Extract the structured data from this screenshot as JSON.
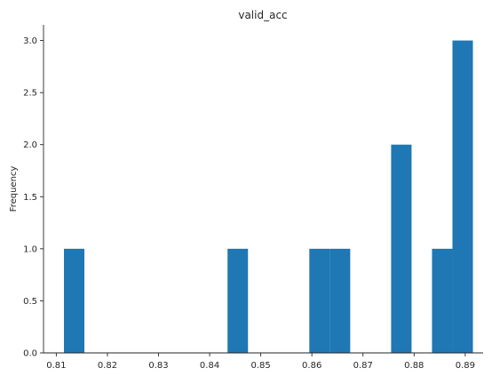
{
  "chart_data": {
    "type": "bar",
    "title": "valid_acc",
    "xlabel": "",
    "ylabel": "Frequency",
    "xlim": [
      0.8075,
      0.8935
    ],
    "ylim": [
      0,
      3.15
    ],
    "xticks": [
      0.81,
      0.82,
      0.83,
      0.84,
      0.85,
      0.86,
      0.87,
      0.88,
      0.89
    ],
    "xtick_labels": [
      "0.81",
      "0.82",
      "0.83",
      "0.84",
      "0.85",
      "0.86",
      "0.87",
      "0.88",
      "0.89"
    ],
    "yticks": [
      0.0,
      0.5,
      1.0,
      1.5,
      2.0,
      2.5,
      3.0
    ],
    "ytick_labels": [
      "0.0",
      "0.5",
      "1.0",
      "1.5",
      "2.0",
      "2.5",
      "3.0"
    ],
    "bins": [
      {
        "x0": 0.8115,
        "x1": 0.8155,
        "count": 1
      },
      {
        "x0": 0.8435,
        "x1": 0.8475,
        "count": 1
      },
      {
        "x0": 0.8595,
        "x1": 0.8635,
        "count": 1
      },
      {
        "x0": 0.8635,
        "x1": 0.8675,
        "count": 1
      },
      {
        "x0": 0.8755,
        "x1": 0.8795,
        "count": 2
      },
      {
        "x0": 0.8835,
        "x1": 0.8875,
        "count": 1
      },
      {
        "x0": 0.8875,
        "x1": 0.8915,
        "count": 3
      }
    ],
    "color": "#1f77b4",
    "grid": false,
    "spines": "left-bottom"
  }
}
